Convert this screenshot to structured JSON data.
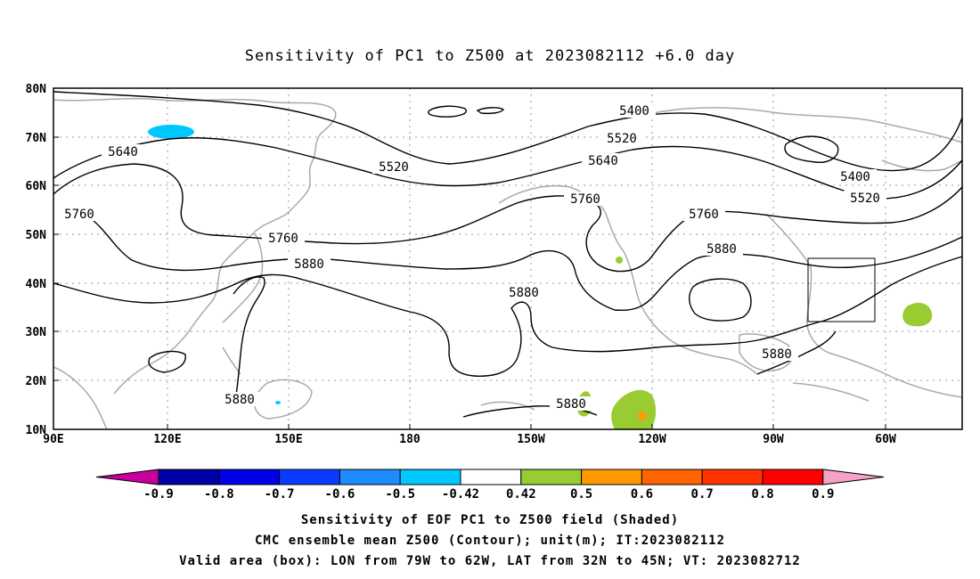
{
  "title": "Sensitivity of PC1 to Z500 at 2023082112 +6.0 day",
  "lat_ticks": [
    "80N",
    "70N",
    "60N",
    "50N",
    "40N",
    "30N",
    "20N",
    "10N"
  ],
  "lon_ticks": [
    "90E",
    "120E",
    "150E",
    "180",
    "150W",
    "120W",
    "90W",
    "60W"
  ],
  "contour_labels": {
    "c5400a": "5400",
    "c5400b": "5400",
    "c5520a": "5520",
    "c5520b": "5520",
    "c5520c": "5520",
    "c5640a": "5640",
    "c5640b": "5640",
    "c5760a": "5760",
    "c5760b": "5760",
    "c5760c": "5760",
    "c5760d": "5760",
    "c5880a": "5880",
    "c5880b": "5880",
    "c5880c": "5880",
    "c5880d": "5880",
    "c5880e": "5880",
    "c5880f": "5880"
  },
  "colorbar": {
    "labels": [
      "-0.9",
      "-0.8",
      "-0.7",
      "-0.6",
      "-0.5",
      "-0.42",
      "0.42",
      "0.5",
      "0.6",
      "0.7",
      "0.8",
      "0.9"
    ],
    "colors": [
      "#c8009c",
      "#0000a8",
      "#0000e8",
      "#0a3cff",
      "#1e8cff",
      "#00c8ff",
      "#ffffff",
      "#99cc33",
      "#ff9900",
      "#ff6400",
      "#ff3200",
      "#ff0000",
      "#f7a1c4"
    ]
  },
  "footer": {
    "line1": "Sensitivity of EOF PC1 to Z500 field (Shaded)",
    "line2": "CMC ensemble mean Z500 (Contour); unit(m); IT:2023082112",
    "line3": "Valid area (box): LON from 79W to 62W, LAT from 32N to 45N; VT: 2023082712"
  }
}
